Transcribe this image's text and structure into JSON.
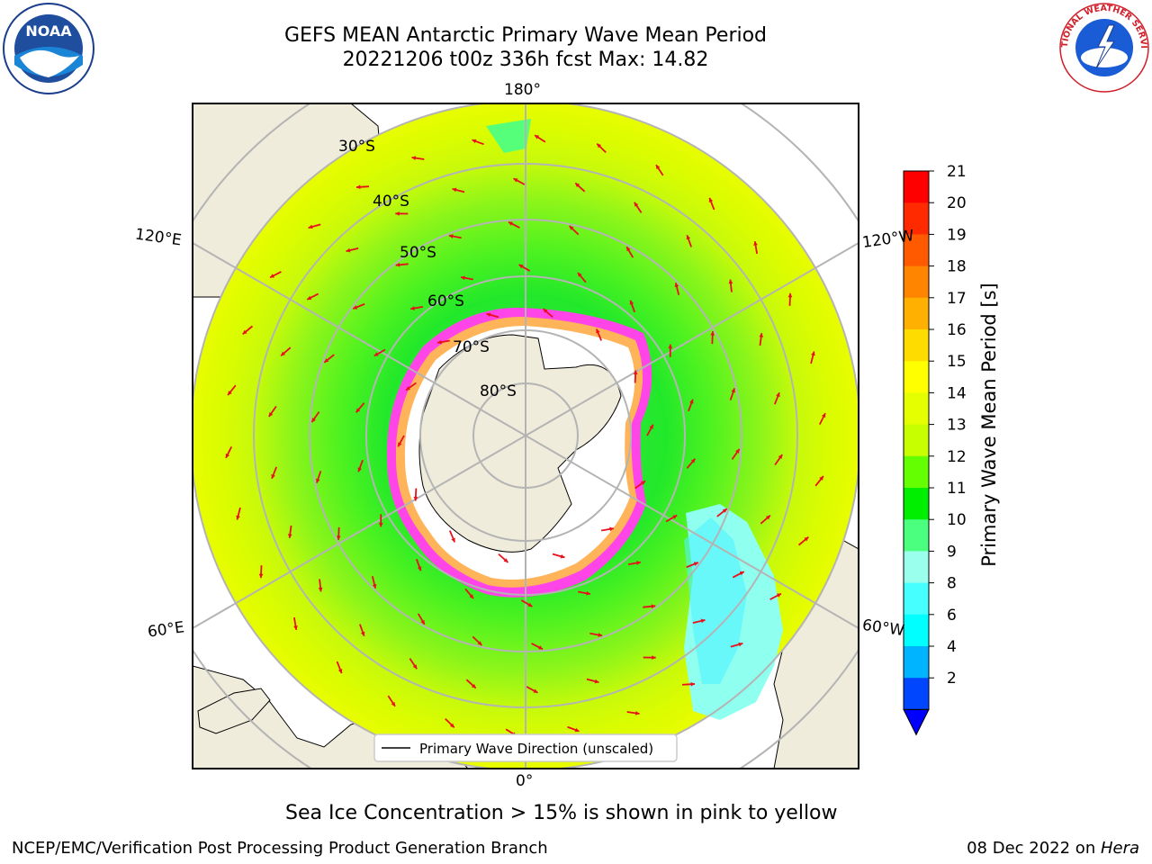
{
  "header": {
    "title_line1": "GEFS MEAN Antarctic Primary Wave Mean Period",
    "title_line2": "20221206 t00z 336h fcst   Max: 14.82"
  },
  "logos": {
    "left": "NOAA",
    "right": "NATIONAL WEATHER SERVICE"
  },
  "map": {
    "projection": "south polar stereographic",
    "longitude_labels": [
      "180°",
      "120°E",
      "120°W",
      "60°E",
      "60°W",
      "0°"
    ],
    "latitude_labels": [
      "30°S",
      "40°S",
      "50°S",
      "60°S",
      "70°S",
      "80°S"
    ],
    "legend_label": "Primary Wave Direction (unscaled)"
  },
  "colorbar": {
    "label": "Primary Wave Mean Period [s]",
    "ticks": [
      "21",
      "20",
      "19",
      "18",
      "17",
      "16",
      "15",
      "14",
      "13",
      "12",
      "11",
      "10",
      "9",
      "8",
      "6",
      "4",
      "2"
    ],
    "colors": [
      "#ff0000",
      "#ff2a00",
      "#ff5a00",
      "#ff8400",
      "#ffb000",
      "#ffdc00",
      "#ffff00",
      "#e6ff00",
      "#c8ff00",
      "#64ff00",
      "#00ee00",
      "#4bff7f",
      "#9affec",
      "#46ffff",
      "#00ffff",
      "#00b4ff",
      "#0046ff"
    ],
    "extend_color": "#0000ff"
  },
  "caption": "Sea Ice Concentration > 15% is shown in pink to yellow",
  "footer": {
    "left": "NCEP/EMC/Verification Post Processing Product Generation Branch",
    "right_date": "08 Dec 2022 on ",
    "right_machine": "Hera"
  }
}
